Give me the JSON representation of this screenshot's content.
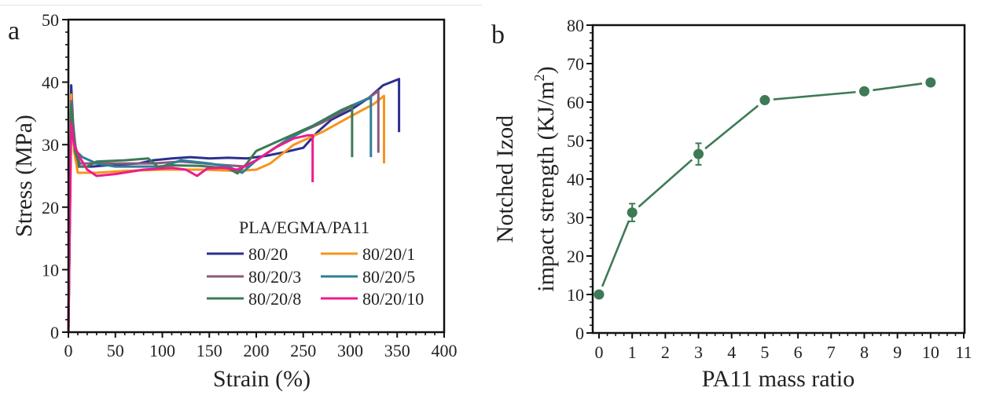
{
  "chart_data": [
    {
      "panel_label": "a",
      "type": "line",
      "title": "",
      "xlabel": "Strain (%)",
      "ylabel": "Stress (MPa)",
      "xlim": [
        0,
        400
      ],
      "ylim": [
        0,
        50
      ],
      "xticks": [
        0,
        50,
        100,
        150,
        200,
        250,
        300,
        350,
        400
      ],
      "yticks": [
        0,
        10,
        20,
        30,
        40,
        50
      ],
      "grid": false,
      "legend": {
        "title": "PLA/EGMA/PA11",
        "placement": "bottom-right",
        "columns": 2
      },
      "series": [
        {
          "name": "80/20",
          "color": "#2b2f8f",
          "points": [
            [
              0,
              0
            ],
            [
              3,
              39.5
            ],
            [
              6,
              30
            ],
            [
              10,
              26.5
            ],
            [
              25,
              26.5
            ],
            [
              50,
              26.8
            ],
            [
              75,
              27
            ],
            [
              90,
              27.5
            ],
            [
              110,
              27.8
            ],
            [
              130,
              28
            ],
            [
              150,
              27.8
            ],
            [
              170,
              27.9
            ],
            [
              190,
              27.8
            ],
            [
              210,
              28.2
            ],
            [
              230,
              28.8
            ],
            [
              250,
              29.5
            ],
            [
              265,
              32
            ],
            [
              280,
              34
            ],
            [
              300,
              35.5
            ],
            [
              320,
              37.5
            ],
            [
              335,
              39.5
            ],
            [
              352,
              40.5
            ],
            [
              352,
              32
            ]
          ]
        },
        {
          "name": "80/20/1",
          "color": "#f7941d",
          "points": [
            [
              0,
              0
            ],
            [
              3,
              38
            ],
            [
              6,
              29
            ],
            [
              10,
              25.5
            ],
            [
              30,
              25.5
            ],
            [
              60,
              25.8
            ],
            [
              100,
              26
            ],
            [
              140,
              26
            ],
            [
              180,
              25.8
            ],
            [
              200,
              26
            ],
            [
              215,
              27
            ],
            [
              240,
              30
            ],
            [
              270,
              32
            ],
            [
              300,
              34.5
            ],
            [
              325,
              36.5
            ],
            [
              336,
              37.8
            ],
            [
              336,
              27
            ]
          ]
        },
        {
          "name": "80/20/3",
          "color": "#8c5a7e",
          "points": [
            [
              0,
              0
            ],
            [
              3,
              37
            ],
            [
              7,
              30
            ],
            [
              12,
              27
            ],
            [
              30,
              27
            ],
            [
              60,
              27
            ],
            [
              90,
              27
            ],
            [
              120,
              27.3
            ],
            [
              160,
              26.8
            ],
            [
              190,
              26.5
            ],
            [
              210,
              28.5
            ],
            [
              240,
              31.5
            ],
            [
              270,
              33.5
            ],
            [
              300,
              36
            ],
            [
              320,
              37.5
            ],
            [
              330,
              38.6
            ],
            [
              330,
              28.7
            ]
          ]
        },
        {
          "name": "80/20/5",
          "color": "#2e7f98",
          "points": [
            [
              0,
              0
            ],
            [
              3,
              36
            ],
            [
              8,
              29
            ],
            [
              15,
              28
            ],
            [
              30,
              27
            ],
            [
              50,
              26.5
            ],
            [
              80,
              26.5
            ],
            [
              100,
              26.5
            ],
            [
              120,
              27.5
            ],
            [
              150,
              27
            ],
            [
              170,
              26.5
            ],
            [
              185,
              25.5
            ],
            [
              200,
              27.5
            ],
            [
              230,
              30.5
            ],
            [
              260,
              33
            ],
            [
              290,
              35.5
            ],
            [
              310,
              36.8
            ],
            [
              322,
              37.5
            ],
            [
              322,
              28
            ]
          ]
        },
        {
          "name": "80/20/8",
          "color": "#3d7a55",
          "points": [
            [
              0,
              0
            ],
            [
              3,
              36.5
            ],
            [
              7,
              29
            ],
            [
              12,
              26.5
            ],
            [
              20,
              26.5
            ],
            [
              30,
              27.3
            ],
            [
              60,
              27.5
            ],
            [
              85,
              27.8
            ],
            [
              95,
              26.5
            ],
            [
              110,
              26.7
            ],
            [
              140,
              26.6
            ],
            [
              170,
              26.2
            ],
            [
              180,
              25.4
            ],
            [
              190,
              27
            ],
            [
              200,
              29
            ],
            [
              230,
              31
            ],
            [
              260,
              33
            ],
            [
              285,
              35
            ],
            [
              302,
              36.3
            ],
            [
              302,
              28
            ]
          ]
        },
        {
          "name": "80/20/10",
          "color": "#ec1c8c",
          "points": [
            [
              0,
              0
            ],
            [
              3,
              33.5
            ],
            [
              6,
              30
            ],
            [
              12,
              28
            ],
            [
              20,
              26
            ],
            [
              30,
              25
            ],
            [
              50,
              25.3
            ],
            [
              80,
              26
            ],
            [
              110,
              26.3
            ],
            [
              125,
              26
            ],
            [
              137,
              25
            ],
            [
              148,
              26.2
            ],
            [
              165,
              26.3
            ],
            [
              180,
              26
            ],
            [
              200,
              27.5
            ],
            [
              220,
              29.5
            ],
            [
              240,
              31
            ],
            [
              255,
              31.5
            ],
            [
              260,
              31.5
            ],
            [
              260,
              24
            ]
          ]
        }
      ]
    },
    {
      "panel_label": "b",
      "type": "line",
      "title": "",
      "xlabel": "PA11 mass ratio",
      "ylabel_line1": "Notched Izod",
      "ylabel_line2": "impact strength (KJ/m",
      "ylabel_sup": "2",
      "ylabel_close": ")",
      "xlim": [
        -0.2,
        11
      ],
      "ylim": [
        0,
        80
      ],
      "xticks": [
        0,
        1,
        2,
        3,
        4,
        5,
        6,
        7,
        8,
        9,
        10,
        11
      ],
      "yticks": [
        0,
        10,
        20,
        30,
        40,
        50,
        60,
        70,
        80
      ],
      "grid": false,
      "series": [
        {
          "name": "Notched Izod impact strength",
          "color": "#3d7a55",
          "x": [
            0,
            1,
            3,
            5,
            8,
            10
          ],
          "values": [
            10.0,
            31.3,
            46.5,
            60.5,
            62.8,
            65.1
          ],
          "error": [
            0.5,
            2.3,
            2.8,
            0.6,
            0.6,
            0.6
          ]
        }
      ]
    }
  ]
}
